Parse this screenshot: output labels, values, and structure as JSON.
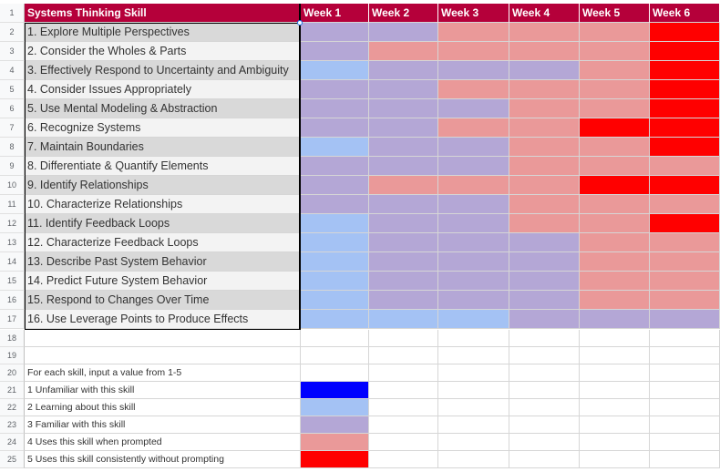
{
  "header": {
    "row_number": "1",
    "skill_header": "Systems Thinking Skill",
    "weeks": [
      "Week 1",
      "Week 2",
      "Week 3",
      "Week 4",
      "Week 5",
      "Week 6"
    ]
  },
  "level_colors": {
    "1": "#0000ff",
    "2": "#a4c2f4",
    "3": "#b4a7d6",
    "4": "#ea9999",
    "5": "#ff0000"
  },
  "skills": [
    {
      "row": "2",
      "label": "1. Explore Multiple Perspectives",
      "values": [
        3,
        3,
        4,
        4,
        4,
        5
      ]
    },
    {
      "row": "3",
      "label": "2. Consider the Wholes & Parts",
      "values": [
        3,
        4,
        4,
        4,
        4,
        5
      ]
    },
    {
      "row": "4",
      "label": "3. Effectively Respond to Uncertainty and Ambiguity",
      "values": [
        2,
        3,
        3,
        3,
        4,
        5
      ]
    },
    {
      "row": "5",
      "label": "4. Consider Issues Appropriately",
      "values": [
        3,
        3,
        4,
        4,
        4,
        5
      ]
    },
    {
      "row": "6",
      "label": "5. Use Mental Modeling & Abstraction",
      "values": [
        3,
        3,
        3,
        4,
        4,
        5
      ]
    },
    {
      "row": "7",
      "label": "6. Recognize Systems",
      "values": [
        3,
        3,
        4,
        4,
        5,
        5
      ]
    },
    {
      "row": "8",
      "label": "7. Maintain Boundaries",
      "values": [
        2,
        3,
        3,
        4,
        4,
        5
      ]
    },
    {
      "row": "9",
      "label": "8. Differentiate & Quantify Elements",
      "values": [
        3,
        3,
        3,
        4,
        4,
        4
      ]
    },
    {
      "row": "10",
      "label": "9. Identify Relationships",
      "values": [
        3,
        4,
        4,
        4,
        5,
        5
      ]
    },
    {
      "row": "11",
      "label": "10. Characterize Relationships",
      "values": [
        3,
        3,
        3,
        4,
        4,
        4
      ]
    },
    {
      "row": "12",
      "label": "11. Identify Feedback Loops",
      "values": [
        2,
        3,
        3,
        4,
        4,
        5
      ]
    },
    {
      "row": "13",
      "label": "12. Characterize Feedback Loops",
      "values": [
        2,
        3,
        3,
        3,
        4,
        4
      ]
    },
    {
      "row": "14",
      "label": "13. Describe Past System Behavior",
      "values": [
        2,
        3,
        3,
        3,
        4,
        4
      ]
    },
    {
      "row": "15",
      "label": "14. Predict Future System Behavior",
      "values": [
        2,
        3,
        3,
        3,
        4,
        4
      ]
    },
    {
      "row": "16",
      "label": "15. Respond to Changes Over Time",
      "values": [
        2,
        3,
        3,
        3,
        4,
        4
      ]
    },
    {
      "row": "17",
      "label": "16. Use Leverage Points to Produce Effects",
      "values": [
        2,
        2,
        2,
        3,
        3,
        3
      ]
    }
  ],
  "empty_rows": [
    "18",
    "19"
  ],
  "legend": {
    "intro_row": "20",
    "intro": "For each skill, input a value from 1-5",
    "items": [
      {
        "row": "21",
        "label": "1 Unfamiliar with this skill",
        "level": 1
      },
      {
        "row": "22",
        "label": "2 Learning about this skill",
        "level": 2
      },
      {
        "row": "23",
        "label": "3 Familiar with this skill",
        "level": 3
      },
      {
        "row": "24",
        "label": "4 Uses this skill when prompted",
        "level": 4
      },
      {
        "row": "25",
        "label": "5 Uses this skill consistently without prompting",
        "level": 5
      }
    ]
  }
}
